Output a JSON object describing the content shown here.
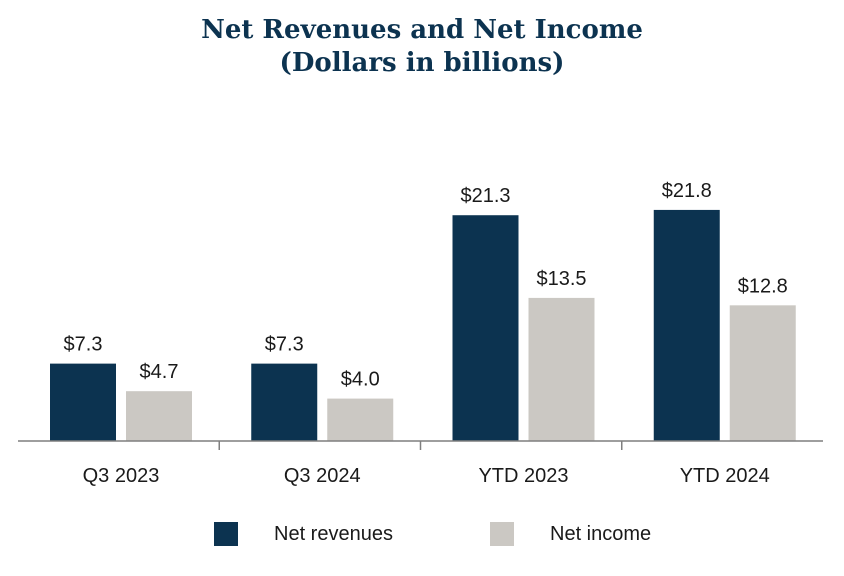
{
  "chart_data": {
    "type": "bar",
    "title": "Net Revenues and Net Income",
    "subtitle": "(Dollars in billions)",
    "categories": [
      "Q3 2023",
      "Q3 2024",
      "YTD 2023",
      "YTD 2024"
    ],
    "series": [
      {
        "name": "Net revenues",
        "color": "#0c3350",
        "values": [
          7.3,
          7.3,
          21.3,
          21.8
        ],
        "labels": [
          "$7.3",
          "$7.3",
          "$21.3",
          "$21.8"
        ]
      },
      {
        "name": "Net income",
        "color": "#cbc8c3",
        "values": [
          4.7,
          4.0,
          13.5,
          12.8
        ],
        "labels": [
          "$4.7",
          "$4.0",
          "$13.5",
          "$12.8"
        ]
      }
    ],
    "ylim": [
      0,
      25
    ],
    "grid": false,
    "legend_position": "bottom"
  }
}
